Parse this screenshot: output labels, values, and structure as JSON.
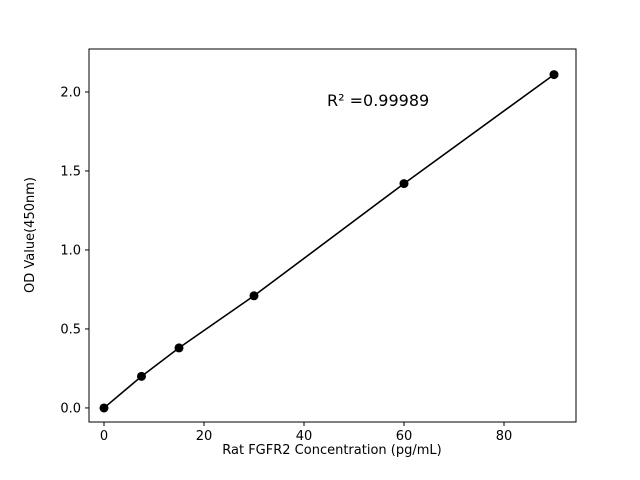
{
  "chart_data": {
    "type": "scatter",
    "x": [
      0,
      7.5,
      15,
      30,
      60,
      90
    ],
    "y": [
      0.0,
      0.2,
      0.38,
      0.71,
      1.42,
      2.11
    ],
    "title": "",
    "xlabel": "Rat FGFR2 Concentration (pg/mL)",
    "ylabel": "OD Value(450nm)",
    "annotation": "R² =0.99989",
    "xlim": [
      -3,
      94.4
    ],
    "ylim": [
      -0.089,
      2.272
    ],
    "xticks": [
      0,
      20,
      40,
      60,
      80
    ],
    "xtick_labels": [
      "0",
      "20",
      "40",
      "60",
      "80"
    ],
    "yticks": [
      0.0,
      0.5,
      1.0,
      1.5,
      2.0
    ],
    "ytick_labels": [
      "0.0",
      "0.5",
      "1.0",
      "1.5",
      "2.0"
    ],
    "line": true,
    "grid": false,
    "legend": null,
    "marker_color": "#000000",
    "line_color": "#000000",
    "background_color": "#ffffff"
  }
}
